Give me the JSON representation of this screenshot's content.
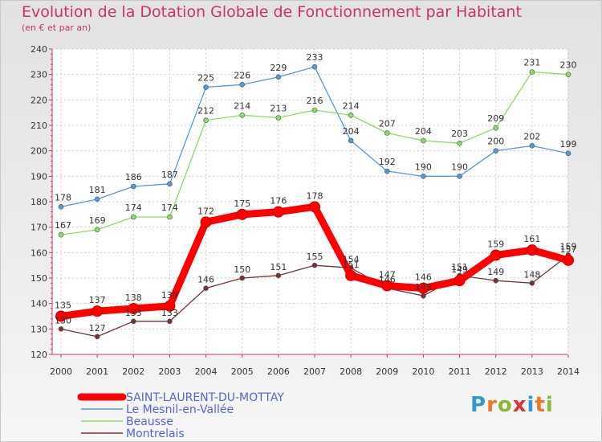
{
  "chart_data": {
    "type": "line",
    "title": "Evolution de la Dotation Globale de Fonctionnement par Habitant",
    "subtitle": "(en € et par an)",
    "xlabel": "",
    "ylabel": "",
    "categories": [
      "2000",
      "2001",
      "2002",
      "2003",
      "2004",
      "2005",
      "2006",
      "2007",
      "2008",
      "2009",
      "2010",
      "2011",
      "2012",
      "2013",
      "2014"
    ],
    "ylim": [
      120,
      240
    ],
    "yticks": [
      "120",
      "130",
      "140",
      "150",
      "160",
      "170",
      "180",
      "190",
      "200",
      "210",
      "220",
      "230",
      "240"
    ],
    "grid": true,
    "legend_position": "bottom-left",
    "series": [
      {
        "name": "SAINT-LAURENT-DU-MOTTAY",
        "color": "#ff0000",
        "style": "thick",
        "values": [
          135,
          137,
          138,
          139,
          172,
          175,
          176,
          178,
          151,
          147,
          146,
          149,
          159,
          161,
          157
        ]
      },
      {
        "name": "Le Mesnil-en-Vallée",
        "color": "#5599dd",
        "style": "thin",
        "values": [
          178,
          181,
          186,
          187,
          225,
          226,
          229,
          233,
          204,
          192,
          190,
          190,
          200,
          202,
          199
        ]
      },
      {
        "name": "Beausse",
        "color": "#88dd66",
        "style": "thin",
        "values": [
          167,
          169,
          174,
          174,
          212,
          214,
          213,
          216,
          214,
          207,
          204,
          203,
          209,
          231,
          230
        ]
      },
      {
        "name": "Montrelais",
        "color": "#773333",
        "style": "thin",
        "values": [
          130,
          127,
          133,
          133,
          146,
          150,
          151,
          155,
          154,
          146,
          143,
          151,
          149,
          148,
          159
        ]
      }
    ]
  },
  "logo": {
    "text": "Proxiti",
    "colors": [
      "#3399cc",
      "#ee7722",
      "#88bb33",
      "#dd3333",
      "#3399cc",
      "#ee7722",
      "#88bb33"
    ]
  }
}
